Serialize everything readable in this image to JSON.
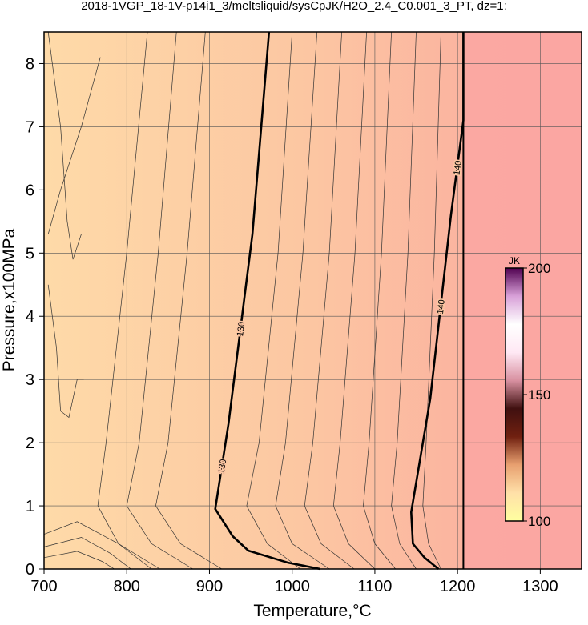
{
  "chart_data": {
    "type": "contour",
    "title": "2018-1VGP_18-1V-p14i1_3/meltsliquid/sysCpJK/H2O_2.4_C0.001_3_PT, dz=1:",
    "x_label": "Temperature,°C",
    "y_label": "Pressure,x100MPa",
    "xlim": [
      700,
      1350
    ],
    "ylim": [
      0,
      8.5
    ],
    "xticks": [
      700,
      800,
      900,
      1000,
      1100,
      1200,
      1300
    ],
    "yticks": [
      0,
      1,
      2,
      3,
      4,
      5,
      6,
      7,
      8
    ],
    "grid": true,
    "contours": [
      {
        "level": 130,
        "x": [
          972,
          952,
          923,
          907,
          928,
          947,
          995,
          1034
        ],
        "y": [
          8.5,
          5.3,
          2.3,
          0.95,
          0.52,
          0.29,
          0.1,
          0
        ]
      },
      {
        "level": 140,
        "x": [
          1207,
          1207,
          1192,
          1167,
          1144,
          1146,
          1160,
          1177
        ],
        "y": [
          8.5,
          7.1,
          5.6,
          2.7,
          0.9,
          0.4,
          0.18,
          0
        ]
      }
    ],
    "boundaries": [
      {
        "x": [
          1207,
          1207
        ],
        "y": [
          0,
          8.5
        ]
      }
    ],
    "thin_contours": [
      {
        "x": [
          768,
          745,
          720,
          705
        ],
        "y": [
          8.1,
          7.0,
          6.0,
          5.3
        ]
      },
      {
        "x": [
          705,
          720,
          728,
          735,
          745
        ],
        "y": [
          8.5,
          7.0,
          5.5,
          4.9,
          5.3
        ]
      },
      {
        "x": [
          705,
          715,
          720,
          730,
          740,
          748
        ],
        "y": [
          4.5,
          3.5,
          2.5,
          2.4,
          3.0,
          3.0
        ]
      },
      {
        "x": [
          825,
          800,
          775,
          765,
          790,
          840
        ],
        "y": [
          8.5,
          5.0,
          2.0,
          1.0,
          0.4,
          0
        ]
      },
      {
        "x": [
          860,
          838,
          815,
          800,
          830,
          880
        ],
        "y": [
          8.5,
          5.0,
          2.0,
          1.0,
          0.4,
          0
        ]
      },
      {
        "x": [
          895,
          873,
          850,
          835,
          865,
          915
        ],
        "y": [
          8.5,
          5.0,
          2.0,
          1.0,
          0.4,
          0
        ]
      },
      {
        "x": [
          1000,
          983,
          960,
          945,
          970,
          1010
        ],
        "y": [
          8.5,
          5.0,
          2.0,
          1.0,
          0.4,
          0
        ]
      },
      {
        "x": [
          1030,
          1013,
          992,
          980,
          1000,
          1045
        ],
        "y": [
          8.5,
          5.0,
          2.0,
          1.0,
          0.4,
          0
        ]
      },
      {
        "x": [
          1060,
          1045,
          1025,
          1015,
          1035,
          1075
        ],
        "y": [
          8.5,
          5.0,
          2.0,
          1.0,
          0.4,
          0
        ]
      },
      {
        "x": [
          1090,
          1076,
          1058,
          1050,
          1068,
          1100
        ],
        "y": [
          8.5,
          5.0,
          2.0,
          1.0,
          0.4,
          0
        ]
      },
      {
        "x": [
          1120,
          1108,
          1093,
          1086,
          1100,
          1125
        ],
        "y": [
          8.5,
          5.0,
          2.0,
          1.0,
          0.4,
          0
        ]
      },
      {
        "x": [
          1150,
          1140,
          1127,
          1120,
          1130,
          1150
        ],
        "y": [
          8.5,
          5.0,
          2.0,
          1.0,
          0.4,
          0
        ]
      },
      {
        "x": [
          1180,
          1172,
          1162,
          1158,
          1165,
          1180
        ],
        "y": [
          8.5,
          5.0,
          2.0,
          1.0,
          0.4,
          0
        ]
      },
      {
        "x": [
          700,
          740,
          790,
          830
        ],
        "y": [
          0.55,
          0.75,
          0.4,
          0
        ]
      },
      {
        "x": [
          700,
          745,
          780,
          805
        ],
        "y": [
          0.35,
          0.5,
          0.25,
          0
        ]
      },
      {
        "x": [
          700,
          740,
          770,
          785
        ],
        "y": [
          0.18,
          0.28,
          0.12,
          0
        ]
      }
    ],
    "colorbar": {
      "label": "JK",
      "lim": [
        100,
        200
      ],
      "ticks": [
        100,
        150,
        200
      ],
      "colors": [
        "#ffffa0",
        "#ffe0a8",
        "#e8a070",
        "#702010",
        "#401010",
        "#d890a0",
        "#ffe8f4",
        "#ffffff",
        "#d8a0d8",
        "#500050"
      ]
    }
  }
}
